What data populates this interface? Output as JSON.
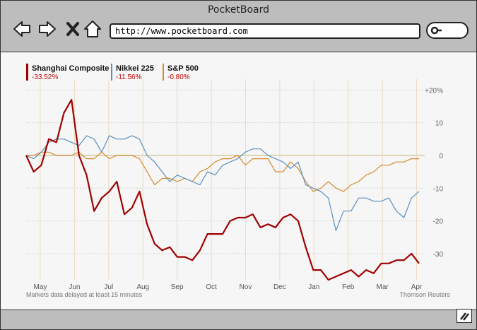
{
  "window": {
    "title": "PocketBoard"
  },
  "toolbar": {
    "url": "http://www.pocketboard.com",
    "icons": [
      "arrow-left-icon",
      "arrow-right-icon",
      "close-icon",
      "home-icon",
      "search-icon"
    ]
  },
  "chart": {
    "note": "Markets data delayed at least 15 minutes",
    "source": "Thomson Reuters",
    "legend": [
      {
        "name": "Shanghai Composite",
        "change": "-33.52%",
        "color": "#a00000"
      },
      {
        "name": "Nikkei 225",
        "change": "-11.56%",
        "color": "#5b8fbf"
      },
      {
        "name": "S&P 500",
        "change": "-0.80%",
        "color": "#d78a2c"
      }
    ]
  },
  "chart_data": {
    "type": "line",
    "x_tick_labels": [
      "May",
      "Jun",
      "Jul",
      "Aug",
      "Sep",
      "Oct",
      "Nov",
      "Dec",
      "Jan",
      "Feb",
      "Mar",
      "Apr"
    ],
    "y_tick_labels": [
      "+20%",
      "10",
      "0",
      "-10",
      "-20",
      "-30"
    ],
    "y_ticks": [
      20,
      10,
      0,
      -10,
      -20,
      -30
    ],
    "ylim": [
      -38,
      22
    ],
    "grid": true,
    "legend_position": "top-left",
    "series": [
      {
        "name": "Shanghai Composite",
        "color": "#a00000",
        "values": [
          0,
          -5,
          -3,
          5,
          4,
          13,
          17,
          0,
          -6,
          -17,
          -13,
          -11,
          -8,
          -18,
          -16,
          -11,
          -21,
          -27,
          -29,
          -28,
          -31,
          -31,
          -32,
          -29,
          -24,
          -24,
          -24,
          -20,
          -19,
          -19,
          -18,
          -22,
          -21,
          -22,
          -19,
          -18,
          -20,
          -28,
          -35,
          -35,
          -38,
          -37,
          -36,
          -35,
          -37,
          -35,
          -36,
          -33,
          -33,
          -32,
          -32,
          -30,
          -33
        ]
      },
      {
        "name": "Nikkei 225",
        "color": "#5b8fbf",
        "values": [
          0,
          -1,
          1,
          4,
          5,
          5,
          4,
          3,
          6,
          5,
          1,
          6,
          5,
          5,
          6,
          5,
          0,
          -2,
          -5,
          -8,
          -6,
          -7,
          -8,
          -9,
          -5,
          -6,
          -3,
          -2,
          -1,
          1,
          2,
          2,
          0,
          -1,
          -2,
          -4,
          -2,
          -9,
          -10,
          -11,
          -13,
          -23,
          -17,
          -17,
          -13,
          -13,
          -14,
          -14,
          -13,
          -17,
          -19,
          -13,
          -11
        ]
      },
      {
        "name": "S&P 500",
        "color": "#d78a2c",
        "values": [
          0,
          0,
          1,
          1,
          0,
          0,
          0,
          1,
          -1,
          -1,
          1,
          -1,
          0,
          0,
          0,
          -1,
          -5,
          -9,
          -7,
          -7,
          -8,
          -7,
          -8,
          -5,
          -4,
          -2,
          -1,
          -1,
          0,
          -3,
          -1,
          -1,
          -1,
          -5,
          -5,
          -2,
          -4,
          -8,
          -11,
          -10,
          -8,
          -10,
          -11,
          -9,
          -8,
          -6,
          -5,
          -3,
          -3,
          -2,
          -2,
          -1,
          -1
        ]
      }
    ]
  }
}
